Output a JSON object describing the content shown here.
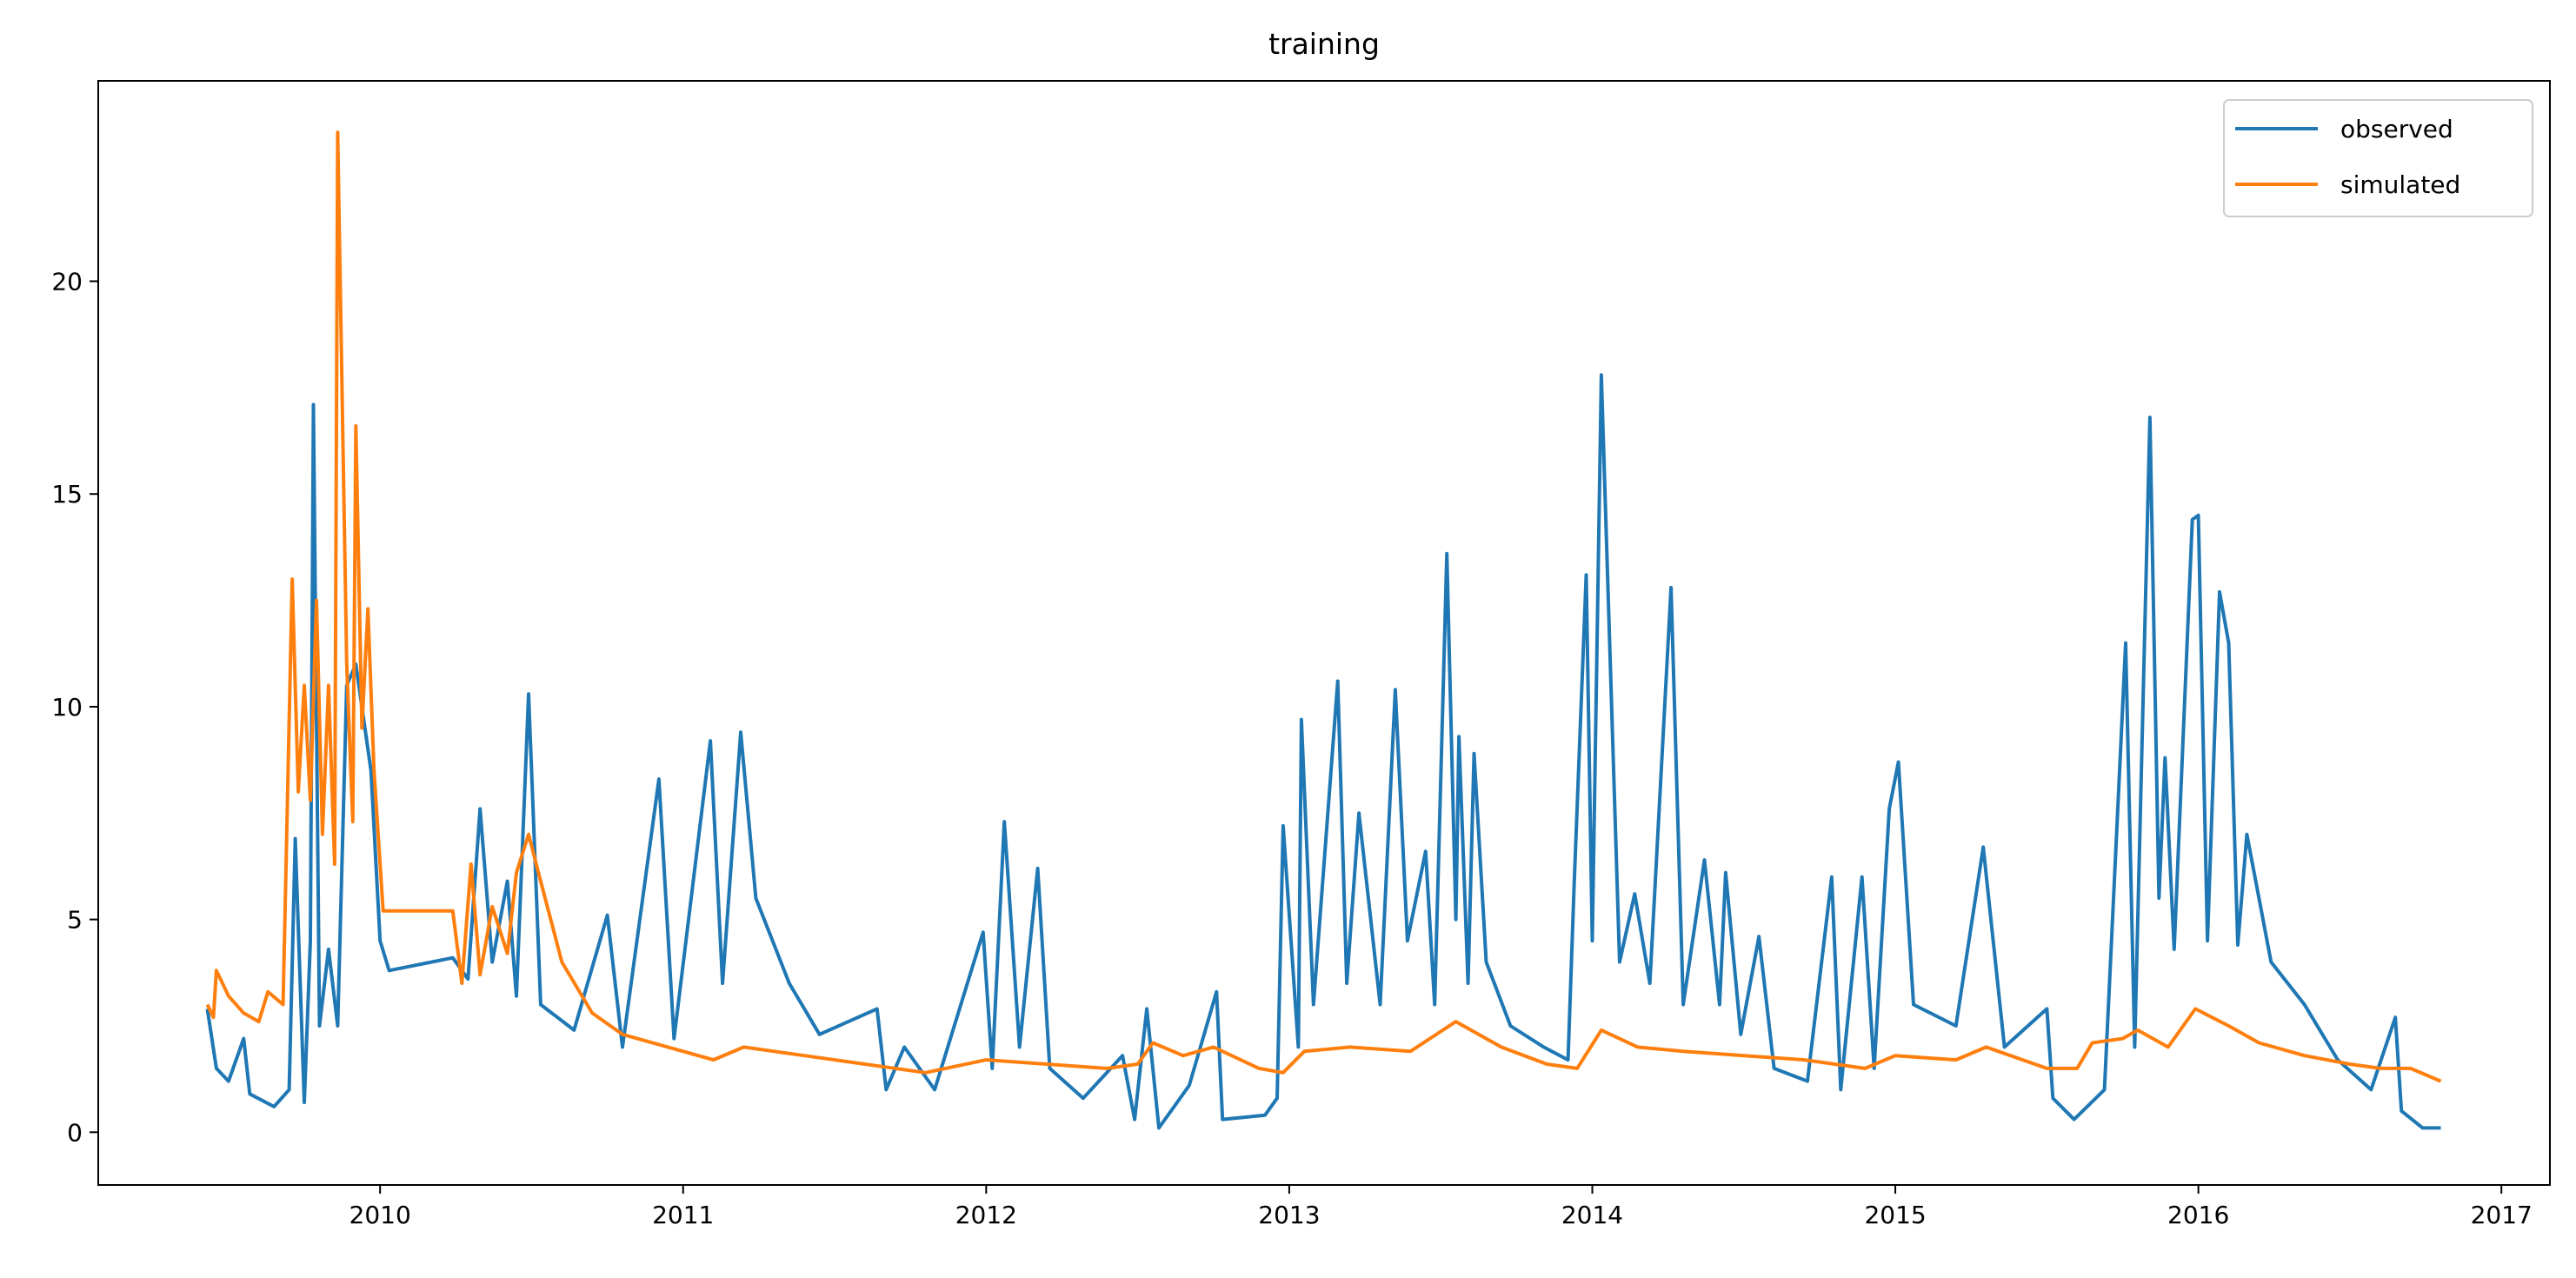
{
  "chart_data": {
    "type": "line",
    "title": "training",
    "xlim": [
      2009.07,
      2017.16
    ],
    "xticks": [
      2010,
      2011,
      2012,
      2013,
      2014,
      2015,
      2016,
      2017
    ],
    "ylim": [
      -1.24,
      24.71
    ],
    "yticks": [
      0,
      5,
      10,
      15,
      20
    ],
    "grid": false,
    "legend": "upper right",
    "series": [
      {
        "name": "observed",
        "color": "#1f77b4",
        "x": [
          2009.43,
          2009.46,
          2009.5,
          2009.55,
          2009.57,
          2009.65,
          2009.7,
          2009.72,
          2009.75,
          2009.77,
          2009.78,
          2009.8,
          2009.83,
          2009.86,
          2009.89,
          2009.92,
          2009.97,
          2010.0,
          2010.03,
          2010.24,
          2010.29,
          2010.33,
          2010.37,
          2010.42,
          2010.45,
          2010.49,
          2010.53,
          2010.64,
          2010.75,
          2010.8,
          2010.92,
          2010.97,
          2011.09,
          2011.13,
          2011.19,
          2011.24,
          2011.35,
          2011.45,
          2011.64,
          2011.67,
          2011.73,
          2011.83,
          2011.99,
          2012.02,
          2012.06,
          2012.11,
          2012.17,
          2012.21,
          2012.32,
          2012.45,
          2012.49,
          2012.53,
          2012.57,
          2012.67,
          2012.76,
          2012.78,
          2012.92,
          2012.96,
          2012.98,
          2013.03,
          2013.04,
          2013.08,
          2013.16,
          2013.19,
          2013.23,
          2013.3,
          2013.35,
          2013.39,
          2013.45,
          2013.48,
          2013.52,
          2013.55,
          2013.56,
          2013.59,
          2013.61,
          2013.65,
          2013.73,
          2013.84,
          2013.92,
          2013.94,
          2013.98,
          2014.0,
          2014.03,
          2014.09,
          2014.14,
          2014.19,
          2014.26,
          2014.3,
          2014.37,
          2014.42,
          2014.44,
          2014.49,
          2014.55,
          2014.6,
          2014.71,
          2014.79,
          2014.82,
          2014.89,
          2014.93,
          2014.98,
          2015.01,
          2015.06,
          2015.2,
          2015.29,
          2015.36,
          2015.5,
          2015.52,
          2015.59,
          2015.69,
          2015.76,
          2015.79,
          2015.84,
          2015.87,
          2015.89,
          2015.92,
          2015.98,
          2016.0,
          2016.03,
          2016.07,
          2016.1,
          2016.13,
          2016.16,
          2016.24,
          2016.35,
          2016.46,
          2016.57,
          2016.65,
          2016.67,
          2016.74,
          2016.8
        ],
        "values": [
          2.9,
          1.5,
          1.2,
          2.2,
          0.9,
          0.6,
          1.0,
          6.9,
          0.7,
          4.5,
          17.1,
          2.5,
          4.3,
          2.5,
          10.5,
          11.0,
          8.5,
          4.5,
          3.8,
          4.1,
          3.6,
          7.6,
          4.0,
          5.9,
          3.2,
          10.3,
          3.0,
          2.4,
          5.1,
          2.0,
          8.3,
          2.2,
          9.2,
          3.5,
          9.4,
          5.5,
          3.5,
          2.3,
          2.9,
          1.0,
          2.0,
          1.0,
          4.7,
          1.5,
          7.3,
          2.0,
          6.2,
          1.5,
          0.8,
          1.8,
          0.3,
          2.9,
          0.1,
          1.1,
          3.3,
          0.3,
          0.4,
          0.8,
          7.2,
          2.0,
          9.7,
          3.0,
          10.6,
          3.5,
          7.5,
          3.0,
          10.4,
          4.5,
          6.6,
          3.0,
          13.6,
          5.0,
          9.3,
          3.5,
          8.9,
          4.0,
          2.5,
          2.0,
          1.7,
          5.8,
          13.1,
          4.5,
          17.8,
          4.0,
          5.6,
          3.5,
          12.8,
          3.0,
          6.4,
          3.0,
          6.1,
          2.3,
          4.6,
          1.5,
          1.2,
          6.0,
          1.0,
          6.0,
          1.5,
          7.6,
          8.7,
          3.0,
          2.5,
          6.7,
          2.0,
          2.9,
          0.8,
          0.3,
          1.0,
          11.5,
          2.0,
          16.8,
          5.5,
          8.8,
          4.3,
          14.4,
          14.5,
          4.5,
          12.7,
          11.5,
          4.4,
          7.0,
          4.0,
          3.0,
          1.7,
          1.0,
          2.7,
          0.5,
          0.1,
          0.1
        ]
      },
      {
        "name": "simulated",
        "color": "#ff7f0e",
        "x": [
          2009.43,
          2009.45,
          2009.46,
          2009.5,
          2009.55,
          2009.6,
          2009.63,
          2009.68,
          2009.71,
          2009.73,
          2009.75,
          2009.77,
          2009.79,
          2009.81,
          2009.83,
          2009.85,
          2009.86,
          2009.89,
          2009.91,
          2009.92,
          2009.94,
          2009.96,
          2009.98,
          2010.01,
          2010.24,
          2010.27,
          2010.3,
          2010.33,
          2010.37,
          2010.42,
          2010.45,
          2010.49,
          2010.53,
          2010.6,
          2010.7,
          2010.8,
          2011.0,
          2011.1,
          2011.2,
          2011.4,
          2011.6,
          2011.8,
          2012.0,
          2012.2,
          2012.4,
          2012.5,
          2012.55,
          2012.65,
          2012.75,
          2012.9,
          2012.98,
          2013.05,
          2013.2,
          2013.4,
          2013.55,
          2013.7,
          2013.85,
          2013.95,
          2014.03,
          2014.15,
          2014.3,
          2014.5,
          2014.7,
          2014.9,
          2015.0,
          2015.2,
          2015.3,
          2015.5,
          2015.6,
          2015.65,
          2015.75,
          2015.8,
          2015.9,
          2015.99,
          2016.1,
          2016.2,
          2016.35,
          2016.5,
          2016.6,
          2016.7,
          2016.8
        ],
        "values": [
          3.0,
          2.7,
          3.8,
          3.2,
          2.8,
          2.6,
          3.3,
          3.0,
          13.0,
          8.0,
          10.5,
          7.8,
          12.5,
          7.0,
          10.5,
          6.3,
          23.5,
          11.0,
          7.3,
          16.6,
          9.5,
          12.3,
          8.5,
          5.2,
          5.2,
          3.5,
          6.3,
          3.7,
          5.3,
          4.2,
          6.1,
          7.0,
          5.9,
          4.0,
          2.8,
          2.3,
          1.9,
          1.7,
          2.0,
          1.8,
          1.6,
          1.4,
          1.7,
          1.6,
          1.5,
          1.6,
          2.1,
          1.8,
          2.0,
          1.5,
          1.4,
          1.9,
          2.0,
          1.9,
          2.6,
          2.0,
          1.6,
          1.5,
          2.4,
          2.0,
          1.9,
          1.8,
          1.7,
          1.5,
          1.8,
          1.7,
          2.0,
          1.5,
          1.5,
          2.1,
          2.2,
          2.4,
          2.0,
          2.9,
          2.5,
          2.1,
          1.8,
          1.6,
          1.5,
          1.5,
          1.2
        ]
      }
    ]
  }
}
